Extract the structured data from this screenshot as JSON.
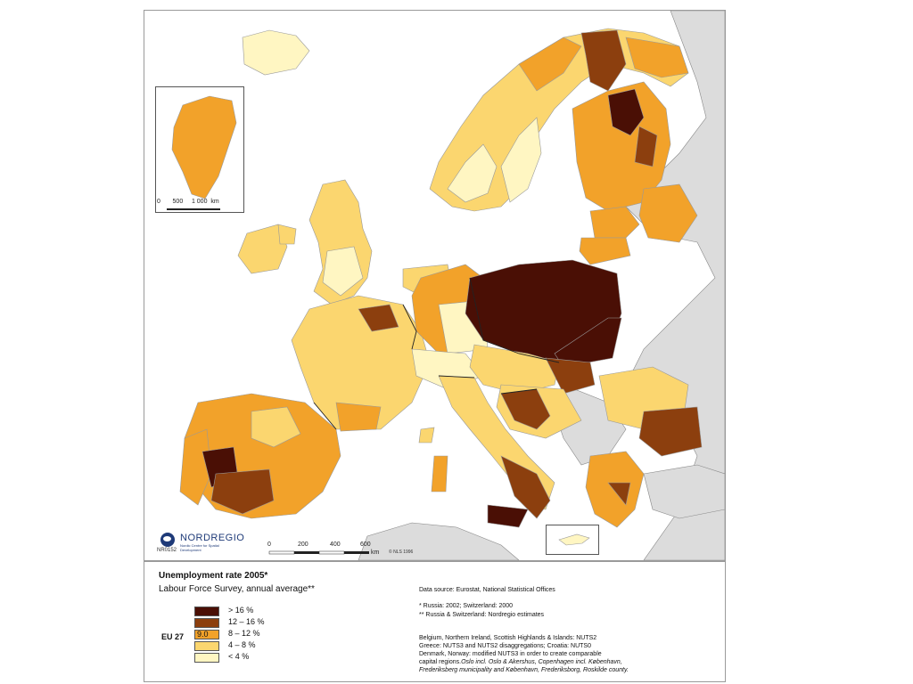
{
  "colors": {
    "class_gt16": "#4a0f05",
    "class_12_16": "#8c3f0e",
    "class_8_12": "#f2a22a",
    "class_4_8": "#fbd66f",
    "class_lt4": "#fff6c2",
    "non_eu": "#dcdcdc",
    "sea": "#ffffff"
  },
  "map": {
    "logo": "NORDREGIO",
    "logo_sub": "Nordic Centre for Spatial Development",
    "code": "NR0152",
    "scale_ticks": [
      "0",
      "200",
      "400",
      "600"
    ],
    "scale_unit": "km",
    "copyright": "© NLS 1996",
    "inset_scale_ticks": [
      "0",
      "500",
      "1 000"
    ],
    "inset_scale_unit": "km"
  },
  "legend": {
    "title": "Unemployment rate 2005*",
    "subtitle": "Labour Force Survey, annual average**",
    "eu_label": "EU 27",
    "eu_value": "9.0",
    "classes": [
      {
        "label": "> 16 %",
        "color": "#4a0f05"
      },
      {
        "label": "12 – 16 %",
        "color": "#8c3f0e"
      },
      {
        "label": "8 – 12 %",
        "color": "#f2a22a"
      },
      {
        "label": "4 – 8 %",
        "color": "#fbd66f"
      },
      {
        "label": "< 4 %",
        "color": "#fff6c2"
      }
    ]
  },
  "notes": {
    "data_source": "Data source: Eurostat, National Statistical Offices",
    "footnote1": "*  Russia: 2002; Switzerland: 2000",
    "footnote2": "** Russia & Switzerland: Nordregio estimates",
    "nuts_line1": "Belgium, Northern Ireland, Scottish Highlands & Islands: NUTS2",
    "nuts_line2": "Greece: NUTS3 and NUTS2 disaggregations; Croatia: NUTS0",
    "nuts_line3": "Denmark, Norway: modified NUTS3 in order to create comparable",
    "nuts_line4": "capital regions.",
    "nuts_line4_italic": "Oslo incl. Oslo & Akershus, Copenhagen incl. København,",
    "nuts_line5": "Frederiksberg municipality and København, Frederiksborg, Roskilde county."
  }
}
